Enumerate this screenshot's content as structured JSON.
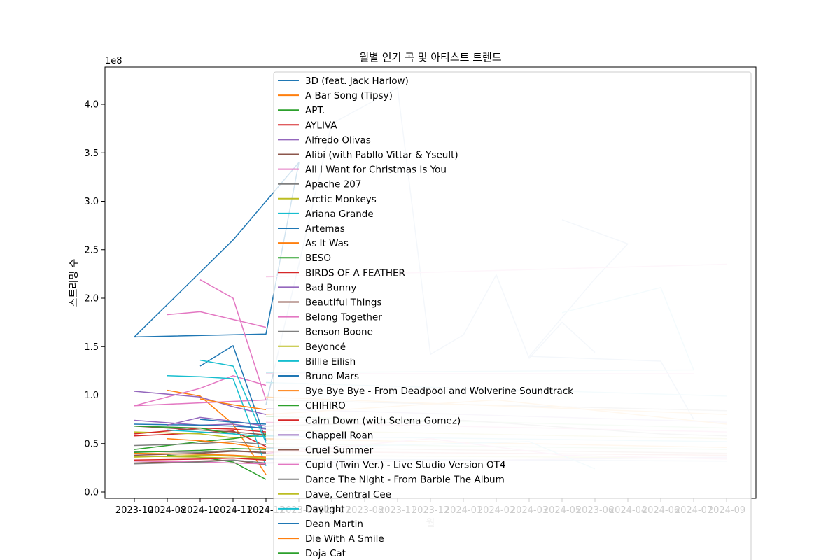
{
  "chart_data": {
    "type": "line",
    "title": "월별 인기 곡 및 아티스트 트렌드",
    "xlabel": "월",
    "ylabel": "스트리밍 수",
    "y_offset_label": "1e8",
    "ylim": [
      0,
      4.4
    ],
    "x": [
      "2023-10",
      "2024-08",
      "2024-10",
      "2024-11",
      "2024-12",
      "2023-06",
      "2023-07",
      "2023-08",
      "2023-11",
      "2023-12",
      "2024-01",
      "2024-02",
      "2024-03",
      "2024-05",
      "2023-06",
      "2024-04",
      "2024-06",
      "2024-07",
      "2024-09"
    ],
    "y_ticks": [
      0.0,
      0.5,
      1.0,
      1.5,
      2.0,
      2.5,
      3.0,
      3.5,
      4.0
    ],
    "y_tick_labels": [
      "0.0",
      "0.5",
      "1.0",
      "1.5",
      "2.0",
      "2.5",
      "3.0",
      "3.5",
      "4.0"
    ],
    "legend_position": "upper center",
    "grid": false,
    "series": [
      {
        "name": "3D (feat. Jack Harlow)",
        "color": "#1f77b4",
        "points": [
          [
            0,
            1.6
          ],
          [
            3,
            2.6
          ],
          [
            5,
            3.4
          ],
          [
            4,
            1.63
          ],
          [
            0,
            1.6
          ]
        ]
      },
      {
        "name": "A Bar Song (Tipsy)",
        "color": "#ff7f0e",
        "points": [
          [
            1,
            1.05
          ],
          [
            2,
            0.99
          ],
          [
            3,
            0.7
          ],
          [
            4,
            0.18
          ]
        ]
      },
      {
        "name": "APT.",
        "color": "#2ca02c",
        "points": [
          [
            1,
            0.38
          ],
          [
            2,
            0.36
          ],
          [
            3,
            0.31
          ],
          [
            4,
            0.13
          ]
        ]
      },
      {
        "name": "AYLIVA",
        "color": "#d62728",
        "points": [
          [
            0,
            0.58
          ],
          [
            2,
            0.61
          ],
          [
            3,
            0.63
          ],
          [
            4,
            0.47
          ]
        ]
      },
      {
        "name": "Alfredo Olivas",
        "color": "#9467bd",
        "points": [
          [
            0,
            0.74
          ],
          [
            2,
            0.69
          ],
          [
            3,
            0.7
          ],
          [
            4,
            0.65
          ]
        ]
      },
      {
        "name": "Alibi (with Pabllo Vittar & Yseult)",
        "color": "#8c564b",
        "points": [
          [
            0,
            0.3
          ],
          [
            2,
            0.32
          ],
          [
            3,
            0.33
          ],
          [
            4,
            0.28
          ]
        ]
      },
      {
        "name": "All I Want for Christmas Is You",
        "color": "#e377c2",
        "points": [
          [
            2,
            2.19
          ],
          [
            3,
            2.0
          ],
          [
            4,
            0.95
          ],
          [
            0,
            0.89
          ],
          [
            2,
            1.07
          ],
          [
            3,
            1.2
          ],
          [
            4,
            1.1
          ]
        ]
      },
      {
        "name": "Apache 207",
        "color": "#7f7f7f",
        "points": [
          [
            0,
            0.42
          ],
          [
            2,
            0.41
          ],
          [
            3,
            0.43
          ],
          [
            4,
            0.4
          ]
        ]
      },
      {
        "name": "Arctic Monkeys",
        "color": "#bcbd22",
        "points": [
          [
            0,
            0.62
          ],
          [
            2,
            0.6
          ],
          [
            3,
            0.56
          ],
          [
            4,
            0.58
          ]
        ]
      },
      {
        "name": "Ariana Grande",
        "color": "#17becf",
        "points": [
          [
            1,
            1.2
          ],
          [
            2,
            1.19
          ],
          [
            3,
            1.17
          ],
          [
            4,
            0.27
          ]
        ]
      },
      {
        "name": "Artemas",
        "color": "#1f77b4",
        "points": [
          [
            2,
            1.3
          ],
          [
            3,
            1.51
          ],
          [
            4,
            0.53
          ]
        ]
      },
      {
        "name": "As It Was",
        "color": "#ff7f0e",
        "points": [
          [
            0,
            0.4
          ],
          [
            2,
            0.39
          ],
          [
            3,
            0.38
          ],
          [
            4,
            0.36
          ]
        ]
      },
      {
        "name": "BESO",
        "color": "#2ca02c",
        "points": [
          [
            0,
            0.44
          ],
          [
            2,
            0.52
          ],
          [
            3,
            0.55
          ],
          [
            4,
            0.6
          ]
        ]
      },
      {
        "name": "BIRDS OF A FEATHER",
        "color": "#d62728",
        "points": [
          [
            0,
            0.6
          ],
          [
            2,
            0.66
          ],
          [
            3,
            0.65
          ],
          [
            4,
            0.62
          ]
        ]
      },
      {
        "name": "Bad Bunny",
        "color": "#9467bd",
        "points": [
          [
            0,
            1.04
          ],
          [
            2,
            0.98
          ],
          [
            3,
            0.88
          ],
          [
            4,
            0.8
          ]
        ]
      },
      {
        "name": "Beautiful Things",
        "color": "#8c564b",
        "points": [
          [
            0,
            0.68
          ],
          [
            2,
            0.64
          ],
          [
            3,
            0.62
          ],
          [
            4,
            0.59
          ]
        ]
      },
      {
        "name": "Belong Together",
        "color": "#e377c2",
        "points": [
          [
            1,
            1.83
          ],
          [
            2,
            1.86
          ],
          [
            4,
            1.7
          ]
        ]
      },
      {
        "name": "Benson Boone",
        "color": "#7f7f7f",
        "points": [
          [
            0,
            0.48
          ],
          [
            2,
            0.5
          ],
          [
            3,
            0.52
          ],
          [
            4,
            0.49
          ]
        ]
      },
      {
        "name": "Beyoncé",
        "color": "#bcbd22",
        "points": [
          [
            0,
            0.37
          ],
          [
            2,
            0.36
          ],
          [
            3,
            0.35
          ],
          [
            4,
            0.34
          ]
        ]
      },
      {
        "name": "Billie Eilish",
        "color": "#17becf",
        "points": [
          [
            2,
            1.36
          ],
          [
            3,
            1.3
          ],
          [
            4,
            0.51
          ]
        ]
      },
      {
        "name": "Bruno Mars",
        "color": "#1f77b4",
        "points": [
          [
            0,
            0.7
          ],
          [
            2,
            0.69
          ],
          [
            3,
            0.68
          ],
          [
            4,
            0.66
          ]
        ]
      },
      {
        "name": "Bye Bye Bye - From Deadpool and Wolverine Soundtrack",
        "color": "#ff7f0e",
        "points": [
          [
            1,
            0.55
          ],
          [
            2,
            0.53
          ],
          [
            3,
            0.5
          ],
          [
            4,
            0.45
          ]
        ]
      },
      {
        "name": "CHIHIRO",
        "color": "#2ca02c",
        "points": [
          [
            0,
            0.68
          ],
          [
            2,
            0.66
          ],
          [
            3,
            0.6
          ],
          [
            4,
            0.57
          ]
        ]
      },
      {
        "name": "Calm Down (with Selena Gomez)",
        "color": "#d62728",
        "points": [
          [
            0,
            0.33
          ],
          [
            2,
            0.34
          ],
          [
            3,
            0.35
          ],
          [
            4,
            0.33
          ]
        ]
      },
      {
        "name": "Chappell Roan",
        "color": "#9467bd",
        "points": [
          [
            1,
            0.69
          ],
          [
            2,
            0.77
          ],
          [
            3,
            0.73
          ],
          [
            4,
            0.68
          ]
        ]
      },
      {
        "name": "Cruel Summer",
        "color": "#8c564b",
        "points": [
          [
            0,
            0.38
          ],
          [
            2,
            0.4
          ],
          [
            3,
            0.42
          ],
          [
            4,
            0.41
          ]
        ]
      },
      {
        "name": "Cupid (Twin Ver.) - Live Studio Version OT4",
        "color": "#e377c2",
        "points": [
          [
            0,
            0.32
          ],
          [
            2,
            0.31
          ],
          [
            3,
            0.3
          ],
          [
            4,
            0.29
          ]
        ]
      },
      {
        "name": "Dance The Night - From Barbie The Album",
        "color": "#7f7f7f",
        "points": [
          [
            0,
            0.29
          ],
          [
            2,
            0.31
          ],
          [
            3,
            0.33
          ],
          [
            4,
            0.3
          ]
        ]
      },
      {
        "name": "Dave, Central Cee",
        "color": "#bcbd22",
        "points": [
          [
            0,
            0.36
          ],
          [
            2,
            0.38
          ],
          [
            3,
            0.37
          ],
          [
            4,
            0.35
          ]
        ]
      },
      {
        "name": "Daylight",
        "color": "#17becf",
        "points": [
          [
            1,
            0.64
          ],
          [
            2,
            0.62
          ],
          [
            3,
            0.6
          ],
          [
            4,
            0.57
          ]
        ]
      },
      {
        "name": "Dean Martin",
        "color": "#1f77b4",
        "points": [
          [
            2,
            0.75
          ],
          [
            3,
            0.72
          ],
          [
            4,
            0.7
          ]
        ]
      },
      {
        "name": "Die With A Smile",
        "color": "#ff7f0e",
        "points": [
          [
            2,
            0.96
          ],
          [
            3,
            0.9
          ],
          [
            4,
            0.85
          ]
        ]
      },
      {
        "name": "Doja Cat",
        "color": "#2ca02c",
        "points": [
          [
            0,
            0.41
          ],
          [
            2,
            0.43
          ],
          [
            3,
            0.45
          ],
          [
            4,
            0.44
          ]
        ]
      },
      {
        "name": "",
        "color": "#c5d8e9",
        "points": [
          [
            4,
            0.9
          ],
          [
            6,
            3.8
          ],
          [
            8,
            4.17
          ],
          [
            9,
            1.42
          ],
          [
            10,
            1.62
          ],
          [
            11,
            2.24
          ],
          [
            12,
            1.38
          ],
          [
            13,
            1.75
          ],
          [
            14,
            1.44
          ]
        ]
      },
      {
        "name": "",
        "color": "#c5d8e9",
        "points": [
          [
            13,
            2.81
          ],
          [
            15,
            2.56
          ],
          [
            14,
            2.2
          ],
          [
            12,
            1.4
          ],
          [
            16,
            1.35
          ],
          [
            17,
            0.75
          ]
        ]
      },
      {
        "name": "",
        "color": "#c9ecf2",
        "points": [
          [
            13,
            1.85
          ],
          [
            16,
            2.11
          ],
          [
            17,
            1.26
          ],
          [
            4,
            1.23
          ]
        ]
      },
      {
        "name": "",
        "color": "#f7cfe8",
        "points": [
          [
            4,
            2.22
          ],
          [
            18,
            2.35
          ]
        ]
      },
      {
        "name": "",
        "color": "#f7cfe8",
        "points": [
          [
            4,
            1.22
          ],
          [
            17,
            1.22
          ]
        ]
      },
      {
        "name": "",
        "color": "#c9ecf2",
        "points": [
          [
            4,
            1.13
          ],
          [
            18,
            0.99
          ]
        ]
      },
      {
        "name": "",
        "color": "#d3d3d3",
        "points": [
          [
            4,
            0.95
          ],
          [
            18,
            0.84
          ]
        ]
      },
      {
        "name": "",
        "color": "#ffd9b0",
        "points": [
          [
            4,
            0.98
          ],
          [
            18,
            0.8
          ]
        ]
      },
      {
        "name": "",
        "color": "#e2d6ee",
        "points": [
          [
            4,
            0.86
          ],
          [
            18,
            0.72
          ]
        ]
      },
      {
        "name": "",
        "color": "#d5f0d5",
        "points": [
          [
            4,
            0.78
          ],
          [
            18,
            0.66
          ]
        ]
      },
      {
        "name": "",
        "color": "#f7cfe8",
        "points": [
          [
            4,
            0.72
          ],
          [
            18,
            0.62
          ]
        ]
      },
      {
        "name": "",
        "color": "#ebebc0",
        "points": [
          [
            4,
            0.64
          ],
          [
            18,
            0.55
          ]
        ]
      },
      {
        "name": "",
        "color": "#c9ecf2",
        "points": [
          [
            4,
            0.58
          ],
          [
            18,
            0.52
          ]
        ]
      },
      {
        "name": "",
        "color": "#ffd9b0",
        "points": [
          [
            4,
            0.55
          ],
          [
            18,
            0.46
          ]
        ]
      },
      {
        "name": "",
        "color": "#d5f0d5",
        "points": [
          [
            4,
            0.5
          ],
          [
            18,
            0.44
          ]
        ]
      },
      {
        "name": "",
        "color": "#e6d2cc",
        "points": [
          [
            4,
            0.46
          ],
          [
            18,
            0.4
          ]
        ]
      },
      {
        "name": "",
        "color": "#f4c6c6",
        "points": [
          [
            4,
            0.42
          ],
          [
            18,
            0.38
          ]
        ]
      },
      {
        "name": "",
        "color": "#ebebc0",
        "points": [
          [
            4,
            0.38
          ],
          [
            18,
            0.35
          ]
        ]
      },
      {
        "name": "",
        "color": "#c5d8e9",
        "points": [
          [
            4,
            0.34
          ],
          [
            18,
            0.32
          ]
        ]
      },
      {
        "name": "",
        "color": "#e2d6ee",
        "points": [
          [
            4,
            0.3
          ],
          [
            18,
            0.36
          ]
        ]
      },
      {
        "name": "",
        "color": "#ffd9b0",
        "points": [
          [
            4,
            0.8
          ],
          [
            11,
            0.95
          ],
          [
            18,
            0.7
          ]
        ]
      },
      {
        "name": "",
        "color": "#d3d3d3",
        "points": [
          [
            4,
            0.68
          ],
          [
            10,
            0.74
          ],
          [
            16,
            0.6
          ],
          [
            18,
            0.58
          ]
        ]
      },
      {
        "name": "",
        "color": "#c9ecf2",
        "points": [
          [
            4,
            0.45
          ],
          [
            12,
            0.52
          ],
          [
            14,
            0.24
          ]
        ]
      },
      {
        "name": "",
        "color": "#f7cfe8",
        "points": [
          [
            4,
            0.4
          ],
          [
            9,
            0.55
          ],
          [
            13,
            0.38
          ],
          [
            18,
            0.34
          ]
        ]
      }
    ]
  }
}
